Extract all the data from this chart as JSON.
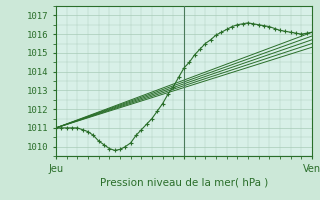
{
  "bg_color": "#cce8d8",
  "plot_bg_color": "#d8f0e8",
  "grid_color": "#a8cbb8",
  "line_color": "#2a6e2a",
  "title": "Pression niveau de la mer( hPa )",
  "ylabel_ticks": [
    1010,
    1011,
    1012,
    1013,
    1014,
    1015,
    1016,
    1017
  ],
  "ylim": [
    1009.5,
    1017.5
  ],
  "xlim": [
    0,
    48
  ],
  "xlabel_ticks": [
    0,
    24,
    48
  ],
  "xlabel_labels": [
    "Jeu",
    "",
    "Ven"
  ],
  "vline_x": 24,
  "series": [
    {
      "x": [
        0,
        1,
        2,
        3,
        4,
        5,
        6,
        7,
        8,
        9,
        10,
        11,
        12,
        13,
        14,
        15,
        16,
        17,
        18,
        19,
        20,
        21,
        22,
        23,
        24,
        25,
        26,
        27,
        28,
        29,
        30,
        31,
        32,
        33,
        34,
        35,
        36,
        37,
        38,
        39,
        40,
        41,
        42,
        43,
        44,
        45,
        46,
        47,
        48
      ],
      "y": [
        1011.0,
        1011.0,
        1011.0,
        1011.0,
        1011.0,
        1010.9,
        1010.8,
        1010.6,
        1010.3,
        1010.1,
        1009.9,
        1009.8,
        1009.85,
        1010.0,
        1010.2,
        1010.6,
        1010.9,
        1011.2,
        1011.5,
        1011.9,
        1012.3,
        1012.8,
        1013.2,
        1013.7,
        1014.2,
        1014.5,
        1014.9,
        1015.2,
        1015.5,
        1015.7,
        1015.95,
        1016.1,
        1016.25,
        1016.4,
        1016.5,
        1016.55,
        1016.6,
        1016.55,
        1016.5,
        1016.45,
        1016.4,
        1016.3,
        1016.2,
        1016.15,
        1016.1,
        1016.05,
        1016.0,
        1016.05,
        1016.1
      ],
      "marker": "+"
    },
    {
      "x": [
        0,
        48
      ],
      "y": [
        1011.0,
        1016.1
      ],
      "marker": null
    },
    {
      "x": [
        0,
        48
      ],
      "y": [
        1011.0,
        1015.9
      ],
      "marker": null
    },
    {
      "x": [
        0,
        48
      ],
      "y": [
        1011.0,
        1015.7
      ],
      "marker": null
    },
    {
      "x": [
        0,
        48
      ],
      "y": [
        1011.0,
        1015.5
      ],
      "marker": null
    },
    {
      "x": [
        0,
        48
      ],
      "y": [
        1011.0,
        1015.3
      ],
      "marker": null
    }
  ]
}
